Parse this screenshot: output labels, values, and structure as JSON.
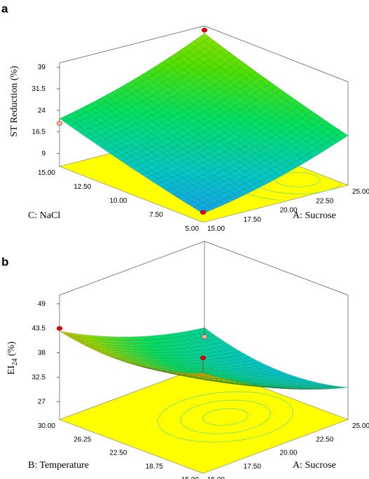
{
  "chart_data": [
    {
      "type": "surface3d",
      "panel_label": "a",
      "title": "",
      "zlabel": "ST Reduction (%)",
      "xlabel": "A: Sucrose",
      "ylabel": "C: NaCl",
      "z_ticks": [
        "9",
        "16.5",
        "24",
        "31.5",
        "39"
      ],
      "x_ticks": [
        "15.00",
        "17.50",
        "20.00",
        "22.50",
        "25.00"
      ],
      "y_ticks": [
        "5.00",
        "7.50",
        "10.00",
        "12.50",
        "15.00"
      ],
      "zlim": [
        4.5,
        40.5
      ],
      "xlim": [
        15,
        25
      ],
      "ylim": [
        5,
        15
      ],
      "model": "quadratic",
      "corner_values": [
        {
          "x": 15,
          "y": 5,
          "z": 7.5
        },
        {
          "x": 25,
          "y": 5,
          "z": 21
        },
        {
          "x": 15,
          "y": 15,
          "z": 22
        },
        {
          "x": 25,
          "y": 15,
          "z": 38
        },
        {
          "x": 20,
          "y": 10,
          "z": 20
        },
        {
          "x": 20,
          "y": 5,
          "z": 14
        },
        {
          "x": 20,
          "y": 15,
          "z": 27
        },
        {
          "x": 15,
          "y": 10,
          "z": 13
        },
        {
          "x": 25,
          "y": 10,
          "z": 30
        }
      ],
      "design_points": [
        {
          "x": 15,
          "y": 15,
          "z": 19.5
        },
        {
          "x": 25,
          "y": 15,
          "z": 39
        },
        {
          "x": 15,
          "y": 5,
          "z": 8
        }
      ],
      "colors": [
        "#1e90ff",
        "#00c8c8",
        "#00e060",
        "#50e000",
        "#a0e000"
      ],
      "floor_color": "#ffff00"
    },
    {
      "type": "surface3d",
      "panel_label": "b",
      "title": "",
      "zlabel_main": "EI",
      "zlabel_sub": "24",
      "zlabel_unit": " (%)",
      "xlabel": "A: Sucrose",
      "ylabel": "B: Temperature",
      "z_ticks": [
        "27",
        "32.5",
        "38",
        "43.5",
        "49"
      ],
      "x_ticks": [
        "15.00",
        "17.50",
        "20.00",
        "22.50",
        "25.00"
      ],
      "y_ticks": [
        "15.00",
        "18.75",
        "22.50",
        "26.25",
        "30.00"
      ],
      "zlim": [
        23,
        51
      ],
      "xlim": [
        15,
        25
      ],
      "ylim": [
        15,
        30
      ],
      "model": "quadratic",
      "corner_values": [
        {
          "x": 15,
          "y": 15,
          "z": 46
        },
        {
          "x": 25,
          "y": 15,
          "z": 30
        },
        {
          "x": 15,
          "y": 30,
          "z": 43
        },
        {
          "x": 25,
          "y": 30,
          "z": 31
        },
        {
          "x": 20,
          "y": 22.5,
          "z": 33
        },
        {
          "x": 20,
          "y": 15,
          "z": 36
        },
        {
          "x": 20,
          "y": 30,
          "z": 36
        },
        {
          "x": 15,
          "y": 22.5,
          "z": 41
        },
        {
          "x": 25,
          "y": 22.5,
          "z": 29
        }
      ],
      "design_points": [
        {
          "x": 15,
          "y": 30,
          "z": 43.5
        },
        {
          "x": 25,
          "y": 30,
          "z": 29.5
        },
        {
          "x": 15,
          "y": 15,
          "z": 49
        }
      ],
      "colors": [
        "#1e90ff",
        "#00c8c8",
        "#00e060",
        "#9ae000",
        "#f0a000",
        "#ff2000"
      ],
      "floor_color": "#ffff00"
    }
  ]
}
